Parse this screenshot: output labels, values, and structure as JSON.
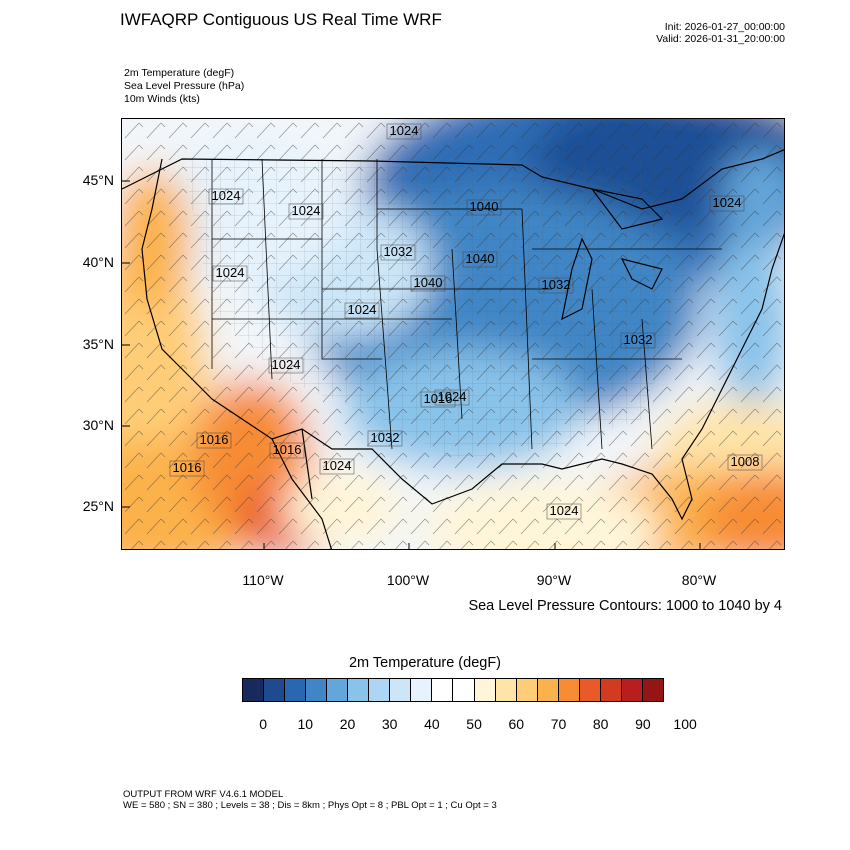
{
  "header": {
    "title": "IWFAQRP Contiguous US Real Time WRF",
    "init": "Init: 2026-01-27_00:00:00",
    "valid": "Valid: 2026-01-31_20:00:00"
  },
  "fields": [
    "2m Temperature   (degF)",
    "Sea Level Pressure   (hPa)",
    "10m Winds   (kts)"
  ],
  "map": {
    "lat_labels": [
      "45°N",
      "40°N",
      "35°N",
      "30°N",
      "25°N"
    ],
    "lon_labels": [
      "110°W",
      "100°W",
      "90°W",
      "80°W"
    ],
    "pressure_labels": [
      "1024",
      "1024",
      "1024",
      "1024",
      "1024",
      "1024",
      "1024",
      "1032",
      "1040",
      "1040",
      "1040",
      "1032",
      "1032",
      "1024",
      "1016",
      "1016",
      "1016",
      "1016",
      "1032",
      "1024",
      "1008",
      "1024"
    ],
    "contour_note": "Sea Level Pressure Contours: 1000 to 1040 by 4",
    "colors": {
      "cold": "#2f6db5",
      "cool": "#8fc3e8",
      "mild": "#f5f8fb",
      "warm": "#fbd18a",
      "hot": "#ee7a2c"
    }
  },
  "colorbar": {
    "title": "2m Temperature  (degF)",
    "colors": [
      "#18295e",
      "#1e4a8f",
      "#2a67b2",
      "#3f86c6",
      "#63a6da",
      "#89c3ea",
      "#acd6f3",
      "#cce6f8",
      "#e7f3fc",
      "#ffffff",
      "#ffffff",
      "#fff5d8",
      "#ffe4a8",
      "#ffcd78",
      "#fcb24c",
      "#f78c34",
      "#ea5a28",
      "#d33a22",
      "#b81e1e",
      "#931614"
    ],
    "ticks": [
      "0",
      "10",
      "20",
      "30",
      "40",
      "50",
      "60",
      "70",
      "80",
      "90",
      "100"
    ]
  },
  "footer": {
    "line1": "OUTPUT FROM WRF V4.6.1 MODEL",
    "line2": "WE = 580 ; SN = 380 ; Levels = 38 ; Dis = 8km ; Phys Opt = 8 ; PBL Opt = 1 ; Cu Opt = 3"
  }
}
